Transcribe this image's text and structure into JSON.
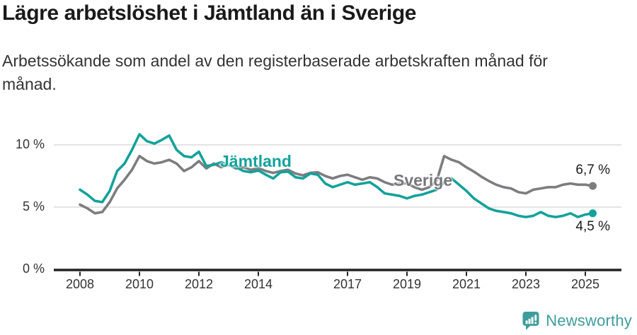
{
  "header": {
    "title": "Lägre arbetslöshet i Jämtland än i Sverige",
    "subtitle_line1": "Arbetssökande som andel av den registerbaserade arbetskraften månad för",
    "subtitle_line2": "månad."
  },
  "colors": {
    "teal": "#13a29a",
    "gray": "#7d7d80",
    "grid": "#dcdcdc",
    "axis": "#222222",
    "logo_teal": "#3f9c9c"
  },
  "chart_data": {
    "type": "line",
    "title": "Lägre arbetslöshet i Jämtland än i Sverige",
    "subtitle": "Arbetssökande som andel av den registerbaserade arbetskraften månad för månad.",
    "xlabel": "",
    "ylabel": "",
    "ylim": [
      0,
      11.5
    ],
    "xlim": [
      2007.2,
      2026.2
    ],
    "grid": "horizontal",
    "legend_position": "inline-labels",
    "y_ticks": [
      {
        "value": 0,
        "label": "0 %"
      },
      {
        "value": 5,
        "label": "5 %"
      },
      {
        "value": 10,
        "label": "10 %"
      }
    ],
    "x_ticks": [
      {
        "value": 2008,
        "label": "2008"
      },
      {
        "value": 2010,
        "label": "2010"
      },
      {
        "value": 2012,
        "label": "2012"
      },
      {
        "value": 2014,
        "label": "2014"
      },
      {
        "value": 2017,
        "label": "2017"
      },
      {
        "value": 2019,
        "label": "2019"
      },
      {
        "value": 2021,
        "label": "2021"
      },
      {
        "value": 2023,
        "label": "2023"
      },
      {
        "value": 2025,
        "label": "2025"
      }
    ],
    "series": [
      {
        "name": "Jämtland",
        "color": "#13a29a",
        "end_label": "4,5 %",
        "end_value": 4.5,
        "x_start": 2008.0,
        "x_step": 0.25,
        "values": [
          6.4,
          6.0,
          5.5,
          5.4,
          6.3,
          7.9,
          8.5,
          9.6,
          10.85,
          10.3,
          10.1,
          10.4,
          10.75,
          9.6,
          9.1,
          9.0,
          9.45,
          8.3,
          8.4,
          8.6,
          8.4,
          8.2,
          7.9,
          7.8,
          7.95,
          7.6,
          7.3,
          7.8,
          7.85,
          7.4,
          7.3,
          7.7,
          7.6,
          6.9,
          6.6,
          6.8,
          7.0,
          6.8,
          6.9,
          7.0,
          6.6,
          6.1,
          6.0,
          5.9,
          5.7,
          5.9,
          6.0,
          6.2,
          6.4,
          7.0,
          7.3,
          6.8,
          6.3,
          5.7,
          5.3,
          4.9,
          4.7,
          4.6,
          4.5,
          4.3,
          4.2,
          4.3,
          4.6,
          4.3,
          4.2,
          4.3,
          4.5,
          4.2,
          4.4,
          4.5
        ]
      },
      {
        "name": "Sverige",
        "color": "#7d7d80",
        "end_label": "6,7 %",
        "end_value": 6.7,
        "x_start": 2008.0,
        "x_step": 0.25,
        "values": [
          5.2,
          4.9,
          4.5,
          4.6,
          5.4,
          6.5,
          7.2,
          8.0,
          9.1,
          8.7,
          8.5,
          8.6,
          8.8,
          8.5,
          7.9,
          8.2,
          8.7,
          8.1,
          8.5,
          8.2,
          8.4,
          8.1,
          8.2,
          8.0,
          8.15,
          7.9,
          7.75,
          7.9,
          8.0,
          7.7,
          7.55,
          7.75,
          7.8,
          7.5,
          7.3,
          7.5,
          7.6,
          7.4,
          7.2,
          7.4,
          7.3,
          7.0,
          6.8,
          6.9,
          6.9,
          6.6,
          6.4,
          6.6,
          7.1,
          9.1,
          8.8,
          8.6,
          8.2,
          7.85,
          7.45,
          7.1,
          6.8,
          6.6,
          6.5,
          6.2,
          6.1,
          6.4,
          6.5,
          6.6,
          6.6,
          6.8,
          6.9,
          6.8,
          6.8,
          6.7
        ]
      }
    ]
  },
  "footer": {
    "brand": "Newsworthy"
  }
}
